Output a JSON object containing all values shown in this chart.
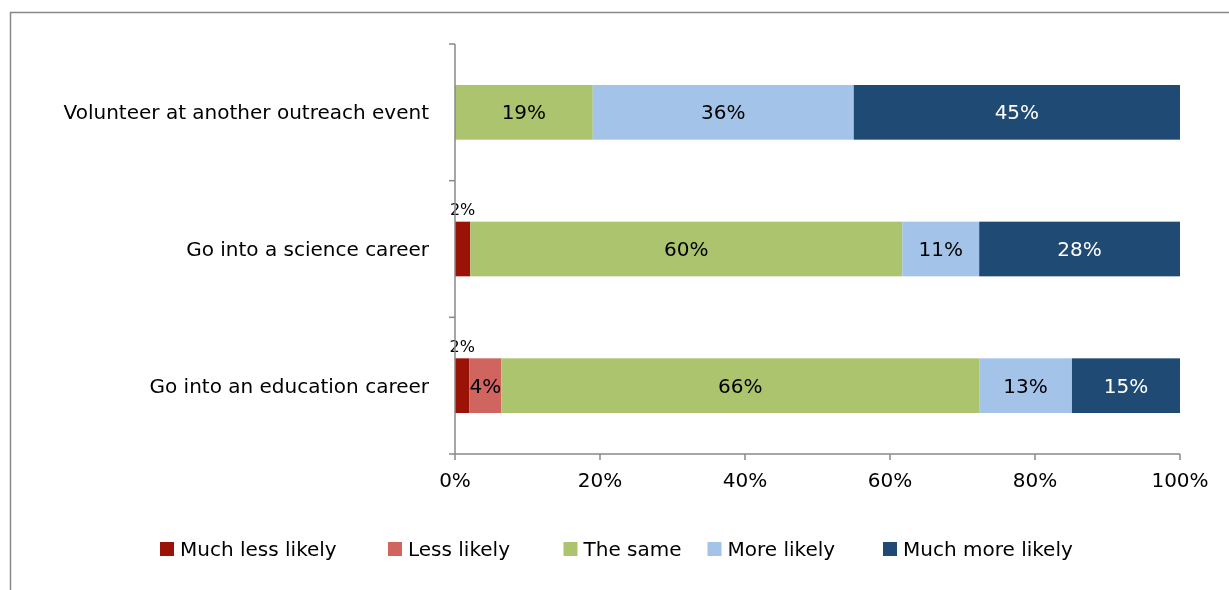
{
  "chart_data": {
    "type": "bar",
    "orientation": "horizontal",
    "stacked": true,
    "categories": [
      "Volunteer at another outreach event",
      "Go into a science career",
      "Go into an education career"
    ],
    "series": [
      {
        "name": "Much less likely",
        "color": "#9a1306",
        "values": [
          0,
          2.1,
          2
        ],
        "value_labels": [
          null,
          "2%",
          "2%"
        ]
      },
      {
        "name": "Less likely",
        "color": "#d0655f",
        "values": [
          0,
          0,
          4.4
        ],
        "value_labels": [
          null,
          null,
          "4%"
        ]
      },
      {
        "name": "The same",
        "color": "#abc46d",
        "values": [
          19,
          59.6,
          65.9
        ],
        "value_labels": [
          "19%",
          "60%",
          "66%"
        ]
      },
      {
        "name": "More likely",
        "color": "#a3c3e8",
        "values": [
          36,
          10.6,
          12.8
        ],
        "value_labels": [
          "36%",
          "11%",
          "13%"
        ]
      },
      {
        "name": "Much more likely",
        "color": "#1f4a74",
        "values": [
          45,
          27.7,
          14.9
        ],
        "value_labels": [
          "45%",
          "28%",
          "15%"
        ]
      }
    ],
    "xlim": [
      0,
      100
    ],
    "xticks": [
      {
        "value": 0,
        "label": "0%"
      },
      {
        "value": 20,
        "label": "20%"
      },
      {
        "value": 40,
        "label": "40%"
      },
      {
        "value": 60,
        "label": "60%"
      },
      {
        "value": 80,
        "label": "80%"
      },
      {
        "value": 100,
        "label": "100%"
      }
    ],
    "legend": "bottom",
    "grid": false
  }
}
